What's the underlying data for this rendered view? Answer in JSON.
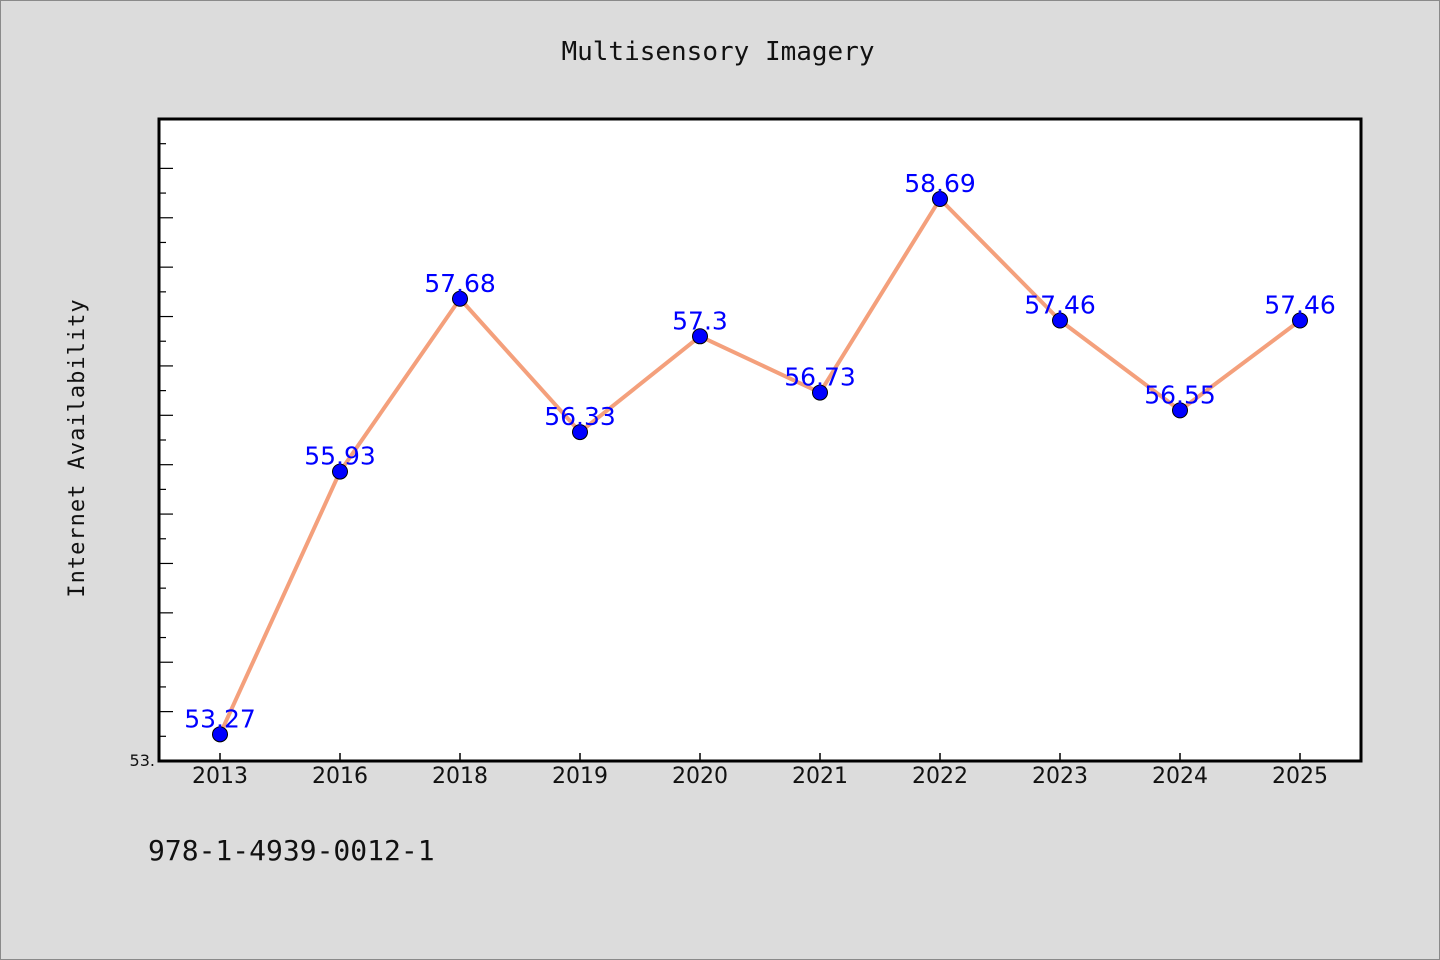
{
  "chart_data": {
    "type": "line",
    "title": "Multisensory Imagery",
    "xlabel": "",
    "ylabel": "Internet Availability",
    "categories": [
      "2013",
      "2016",
      "2018",
      "2019",
      "2020",
      "2021",
      "2022",
      "2023",
      "2024",
      "2025"
    ],
    "series": [
      {
        "values": [
          53.27,
          55.93,
          57.68,
          56.33,
          57.3,
          56.73,
          58.69,
          57.46,
          56.55,
          57.46
        ],
        "data_labels": [
          "53.27",
          "55.93",
          "57.68",
          "56.33",
          "57.3",
          "56.73",
          "58.69",
          "57.46",
          "56.55",
          "57.46"
        ],
        "line_color": "#f4a07c",
        "marker_color": "#0000ff"
      }
    ],
    "ylim": [
      53.0,
      59.5
    ],
    "y_tick_labels": [
      "53."
    ],
    "grid": false,
    "legend": "none"
  },
  "footer": {
    "isbn": "978-1-4939-0012-1"
  },
  "colors": {
    "background": "#dcdcdc",
    "plot_background": "#ffffff",
    "axis": "#000000",
    "data_label": "#0000ff"
  }
}
